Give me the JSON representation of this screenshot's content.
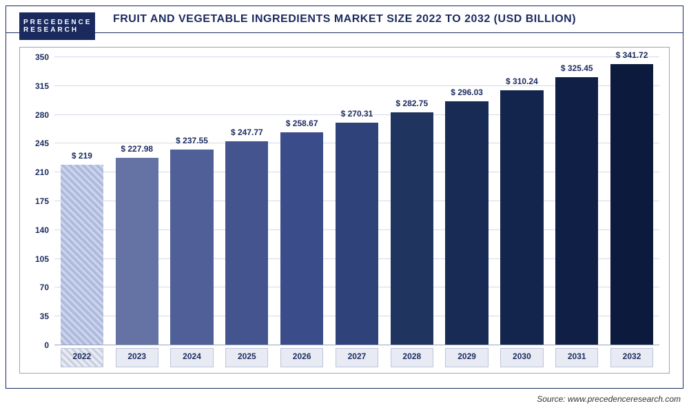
{
  "logo": {
    "line1": "PRECEDENCE",
    "line2": "RESEARCH"
  },
  "title": "FRUIT AND VEGETABLE INGREDIENTS MARKET SIZE 2022 TO 2032 (USD BILLION)",
  "source": "Source: www.precedenceresearch.com",
  "chart": {
    "type": "bar",
    "categories": [
      "2022",
      "2023",
      "2024",
      "2025",
      "2026",
      "2027",
      "2028",
      "2029",
      "2030",
      "2031",
      "2032"
    ],
    "values": [
      219,
      227.98,
      237.55,
      247.77,
      258.67,
      270.31,
      282.75,
      296.03,
      310.24,
      325.45,
      341.72
    ],
    "value_labels": [
      "$ 219",
      "$ 227.98",
      "$ 237.55",
      "$ 247.77",
      "$ 258.67",
      "$ 270.31",
      "$ 282.75",
      "$ 296.03",
      "$ 310.24",
      "$ 325.45",
      "$ 341.72"
    ],
    "bar_colors": [
      "#aebade",
      "#6572a4",
      "#505f98",
      "#44548f",
      "#3a4c8a",
      "#2f4279",
      "#1f345f",
      "#172b54",
      "#13254d",
      "#0f1f45",
      "#0c1a3e"
    ],
    "ylim": [
      0,
      350
    ],
    "ytick_step": 35,
    "yticks": [
      "0",
      "35",
      "70",
      "105",
      "140",
      "175",
      "210",
      "245",
      "280",
      "315",
      "350"
    ],
    "grid_color": "#d5d9e6",
    "background_color": "#ffffff",
    "title_color": "#1a2a5e",
    "title_fontsize": 16,
    "label_fontsize": 12,
    "bar_width": 0.78,
    "x_label_bg": "#e8ebf4",
    "x_label_border": "#bcc4da",
    "legend_year_hatched": "2022"
  }
}
